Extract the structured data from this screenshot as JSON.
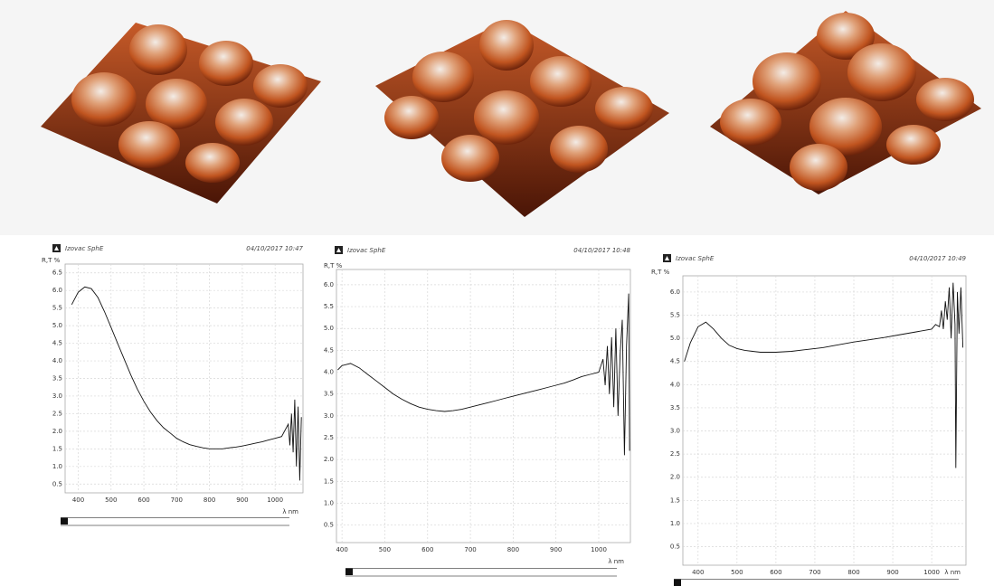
{
  "chart_data": [
    {
      "type": "line",
      "header": "Izovac SphE",
      "timestamp": "04/10/2017 10:47",
      "y_label": "R,T %",
      "x_label": "λ nm",
      "color": "#111111",
      "grid": true,
      "xlim": [
        360,
        1085
      ],
      "ylim": [
        0.25,
        6.75
      ],
      "xticks": [
        400,
        500,
        600,
        700,
        800,
        900,
        1000
      ],
      "yticks": [
        0.5,
        {
          "value": 1,
          "label": "1.0"
        },
        1.5,
        {
          "value": 2,
          "label": "2.0"
        },
        2.5,
        {
          "value": 3,
          "label": "3.0"
        },
        3.5,
        {
          "value": 4,
          "label": "4.0"
        },
        4.5,
        {
          "value": 5,
          "label": "5.0"
        },
        5.5,
        {
          "value": 6,
          "label": "6.0"
        },
        6.5
      ],
      "x": [
        380,
        400,
        420,
        440,
        460,
        480,
        500,
        520,
        540,
        560,
        580,
        600,
        620,
        640,
        660,
        680,
        700,
        720,
        740,
        760,
        780,
        800,
        820,
        840,
        860,
        880,
        900,
        920,
        940,
        960,
        980,
        1000,
        1020,
        1040,
        1045,
        1050,
        1055,
        1060,
        1065,
        1070,
        1075,
        1080
      ],
      "values": [
        5.6,
        5.95,
        6.1,
        6.05,
        5.8,
        5.4,
        4.95,
        4.5,
        4.05,
        3.6,
        3.2,
        2.85,
        2.55,
        2.3,
        2.1,
        1.95,
        1.8,
        1.7,
        1.62,
        1.57,
        1.53,
        1.5,
        1.5,
        1.5,
        1.53,
        1.55,
        1.58,
        1.62,
        1.66,
        1.7,
        1.75,
        1.8,
        1.85,
        2.2,
        1.6,
        2.5,
        1.4,
        2.9,
        1.0,
        2.7,
        0.6,
        2.4
      ]
    },
    {
      "type": "line",
      "header": "Izovac SphE",
      "timestamp": "04/10/2017 10:48",
      "y_label": "R,T %",
      "x_label": "λ nm",
      "color": "#111111",
      "grid": true,
      "xlim": [
        387,
        1074
      ],
      "ylim": [
        0.1,
        6.35
      ],
      "xticks": [
        400,
        500,
        600,
        700,
        800,
        900,
        1000
      ],
      "yticks": [
        0.5,
        {
          "value": 1,
          "label": "1.0"
        },
        1.5,
        {
          "value": 2,
          "label": "2.0"
        },
        2.5,
        {
          "value": 3,
          "label": "3.0"
        },
        3.5,
        {
          "value": 4,
          "label": "4.0"
        },
        4.5,
        {
          "value": 5,
          "label": "5.0"
        },
        5.5,
        {
          "value": 6,
          "label": "6.0"
        }
      ],
      "x": [
        390,
        400,
        420,
        440,
        460,
        480,
        500,
        520,
        540,
        560,
        580,
        600,
        620,
        640,
        660,
        680,
        700,
        720,
        740,
        760,
        780,
        800,
        820,
        840,
        860,
        880,
        900,
        920,
        940,
        960,
        980,
        1000,
        1010,
        1015,
        1020,
        1025,
        1030,
        1035,
        1040,
        1045,
        1050,
        1055,
        1060,
        1065,
        1070,
        1072
      ],
      "values": [
        4.05,
        4.15,
        4.2,
        4.1,
        3.95,
        3.8,
        3.65,
        3.5,
        3.38,
        3.28,
        3.2,
        3.15,
        3.12,
        3.1,
        3.12,
        3.15,
        3.2,
        3.25,
        3.3,
        3.35,
        3.4,
        3.45,
        3.5,
        3.55,
        3.6,
        3.65,
        3.7,
        3.75,
        3.82,
        3.9,
        3.95,
        4.0,
        4.3,
        3.7,
        4.6,
        3.5,
        4.8,
        3.2,
        5.0,
        3.0,
        4.4,
        5.2,
        2.1,
        4.6,
        5.8,
        2.2
      ]
    },
    {
      "type": "line",
      "header": "Izovac SphE",
      "timestamp": "04/10/2017 10:49",
      "y_label": "R,T %",
      "x_label": "λ nm",
      "color": "#111111",
      "grid": true,
      "xlim": [
        361,
        1088
      ],
      "ylim": [
        0.1,
        6.35
      ],
      "xticks": [
        400,
        500,
        600,
        700,
        800,
        900,
        1000
      ],
      "yticks": [
        0.5,
        {
          "value": 1,
          "label": "1.0"
        },
        1.5,
        {
          "value": 2,
          "label": "2.0"
        },
        2.5,
        {
          "value": 3,
          "label": "3.0"
        },
        3.5,
        {
          "value": 4,
          "label": "4.0"
        },
        4.5,
        {
          "value": 5,
          "label": "5.0"
        },
        5.5,
        {
          "value": 6,
          "label": "6.0"
        }
      ],
      "x": [
        365,
        380,
        400,
        420,
        440,
        460,
        480,
        500,
        520,
        540,
        560,
        600,
        640,
        680,
        720,
        760,
        800,
        840,
        880,
        920,
        960,
        1000,
        1010,
        1020,
        1025,
        1030,
        1035,
        1040,
        1045,
        1050,
        1055,
        1060,
        1062,
        1066,
        1070,
        1075,
        1080
      ],
      "values": [
        4.5,
        4.9,
        5.25,
        5.35,
        5.2,
        5.0,
        4.85,
        4.78,
        4.74,
        4.72,
        4.7,
        4.7,
        4.72,
        4.76,
        4.8,
        4.86,
        4.92,
        4.97,
        5.02,
        5.08,
        5.14,
        5.2,
        5.3,
        5.25,
        5.6,
        5.2,
        5.8,
        5.4,
        6.1,
        5.0,
        6.2,
        5.3,
        2.2,
        6.0,
        5.1,
        6.1,
        4.8
      ]
    }
  ]
}
